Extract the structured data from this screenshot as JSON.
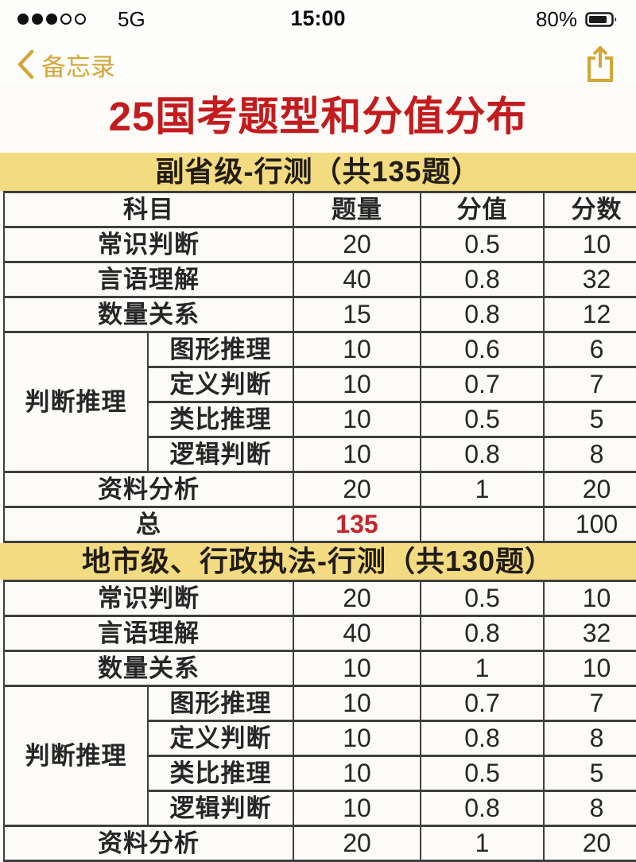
{
  "status_bar": {
    "signal_filled": 3,
    "signal_total": 5,
    "network": "5G",
    "time": "15:00",
    "battery_percent": "80%"
  },
  "nav": {
    "back_label": "备忘录"
  },
  "title": "25国考题型和分值分布",
  "colors": {
    "gold_accent": "#d5a637",
    "title_red": "#c31b1e",
    "banner_yellow": "#f3db81",
    "highlight_red": "#c3272b",
    "table_border": "#3f3f3f"
  },
  "tables": [
    {
      "banner": "副省级-行测（共135题）",
      "headers": [
        "科目",
        "题量",
        "分值",
        "分数"
      ],
      "rows": [
        {
          "type": "simple",
          "label": "常识判断",
          "qty": "20",
          "value": "0.5",
          "score": "10"
        },
        {
          "type": "simple",
          "label": "言语理解",
          "qty": "40",
          "value": "0.8",
          "score": "32"
        },
        {
          "type": "simple",
          "label": "数量关系",
          "qty": "15",
          "value": "0.8",
          "score": "12"
        },
        {
          "type": "group-start",
          "group": "判断推理",
          "label": "图形推理",
          "qty": "10",
          "value": "0.6",
          "score": "6"
        },
        {
          "type": "group",
          "label": "定义判断",
          "qty": "10",
          "value": "0.7",
          "score": "7"
        },
        {
          "type": "group",
          "label": "类比推理",
          "qty": "10",
          "value": "0.5",
          "score": "5"
        },
        {
          "type": "group",
          "label": "逻辑判断",
          "qty": "10",
          "value": "0.8",
          "score": "8"
        },
        {
          "type": "simple",
          "label": "资料分析",
          "qty": "20",
          "value": "1",
          "score": "20"
        },
        {
          "type": "simple",
          "label": "总",
          "qty": "135",
          "qty_highlight": true,
          "value": "",
          "score": "100"
        }
      ]
    },
    {
      "banner": "地市级、行政执法-行测（共130题）",
      "headers": null,
      "rows": [
        {
          "type": "simple",
          "label": "常识判断",
          "qty": "20",
          "value": "0.5",
          "score": "10"
        },
        {
          "type": "simple",
          "label": "言语理解",
          "qty": "40",
          "value": "0.8",
          "score": "32"
        },
        {
          "type": "simple",
          "label": "数量关系",
          "qty": "10",
          "value": "1",
          "score": "10"
        },
        {
          "type": "group-start",
          "group": "判断推理",
          "label": "图形推理",
          "qty": "10",
          "value": "0.7",
          "score": "7"
        },
        {
          "type": "group",
          "label": "定义判断",
          "qty": "10",
          "value": "0.8",
          "score": "8"
        },
        {
          "type": "group",
          "label": "类比推理",
          "qty": "10",
          "value": "0.5",
          "score": "5"
        },
        {
          "type": "group",
          "label": "逻辑判断",
          "qty": "10",
          "value": "0.8",
          "score": "8"
        },
        {
          "type": "simple",
          "label": "资料分析",
          "qty": "20",
          "value": "1",
          "score": "20"
        }
      ]
    }
  ]
}
